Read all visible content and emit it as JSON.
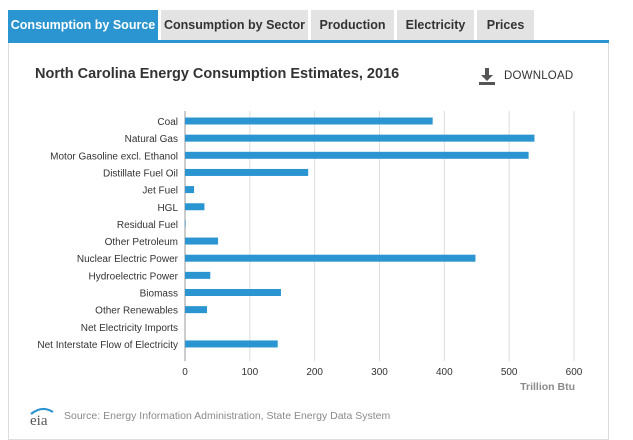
{
  "tabs": [
    {
      "label": "Consumption by Source",
      "active": true
    },
    {
      "label": "Consumption by Sector",
      "active": false
    },
    {
      "label": "Production",
      "active": false
    },
    {
      "label": "Electricity",
      "active": false
    },
    {
      "label": "Prices",
      "active": false
    }
  ],
  "download": {
    "label": "DOWNLOAD",
    "icon": "download-icon"
  },
  "source": {
    "text": "Source: Energy Information Administration, State Energy Data System",
    "logo_text": "eia"
  },
  "colors": {
    "accent": "#2b95d1",
    "bar": "#2b95d1",
    "tab_inactive": "#e3e3e3",
    "grid": "#dddddd"
  },
  "chart_data": {
    "type": "bar",
    "orientation": "horizontal",
    "title": "North Carolina Energy Consumption Estimates, 2016",
    "xlabel": "Trillion Btu",
    "ylabel": "",
    "xlim": [
      0,
      600
    ],
    "xticks": [
      0,
      100,
      200,
      300,
      400,
      500,
      600
    ],
    "grid": true,
    "categories": [
      "Coal",
      "Natural Gas",
      "Motor Gasoline excl. Ethanol",
      "Distillate Fuel Oil",
      "Jet Fuel",
      "HGL",
      "Residual Fuel",
      "Other Petroleum",
      "Nuclear Electric Power",
      "Hydroelectric Power",
      "Biomass",
      "Other Renewables",
      "Net Electricity Imports",
      "Net Interstate Flow of Electricity"
    ],
    "values": [
      382,
      539,
      530,
      190,
      14,
      30,
      1,
      51,
      448,
      39,
      148,
      34,
      0,
      143
    ]
  }
}
